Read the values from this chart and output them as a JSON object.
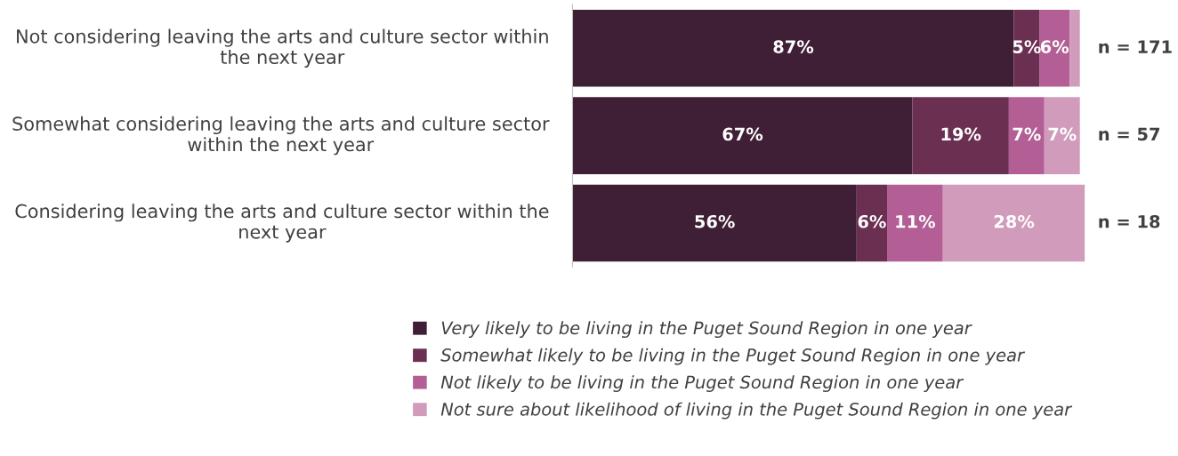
{
  "chart_data": {
    "type": "bar",
    "orientation": "horizontal",
    "stacked": true,
    "categories": [
      "Not considering leaving the arts and culture sector within the next year",
      "Somewhat considering leaving the arts and culture sector within the next year",
      "Considering leaving the arts and culture sector within the next year"
    ],
    "series": [
      {
        "name": "Very likely to be living in the Puget Sound Region in one year",
        "color": "#3f1f35",
        "values": [
          87,
          67,
          56
        ],
        "value_labels": [
          "87%",
          "67%",
          "56%"
        ]
      },
      {
        "name": "Somewhat likely to be living in the Puget Sound Region in one year",
        "color": "#6b2f52",
        "values": [
          5,
          19,
          6
        ],
        "value_labels": [
          "5%",
          "19%",
          "6%"
        ]
      },
      {
        "name": "Not likely to be living in the Puget Sound Region in one year",
        "color": "#b35f95",
        "values": [
          6,
          7,
          11
        ],
        "value_labels": [
          "6%",
          "7%",
          "11%"
        ]
      },
      {
        "name": "Not sure about likelihood of living in the Puget Sound Region in one year",
        "color": "#d19bbb",
        "values": [
          2,
          7,
          28
        ],
        "value_labels": [
          null,
          "7%",
          "28%"
        ]
      }
    ],
    "xlim": [
      0,
      101
    ],
    "tick_labels": "y",
    "legend": "bottom",
    "annotations": [
      "n = 171",
      "n = 57",
      "n = 18"
    ]
  }
}
